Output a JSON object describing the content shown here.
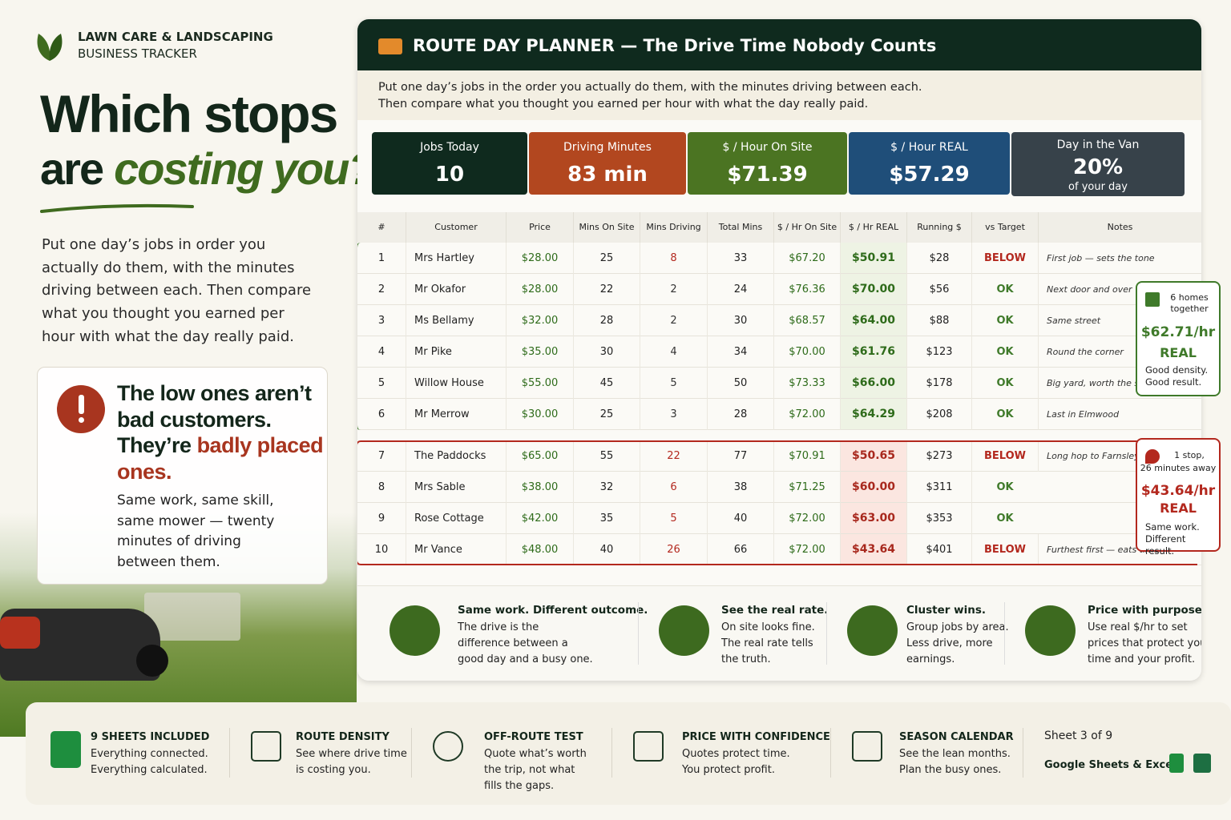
{
  "brand": {
    "line1": "LAWN CARE & LANDSCAPING",
    "line2": "BUSINESS TRACKER"
  },
  "headline": {
    "line1": "Which stops",
    "line2_plain": "are",
    "line2_accent": "costing you?"
  },
  "intro": "Put one day’s jobs in order you actually do them, with the minutes driving between each. Then compare what you thought you earned per hour with what the day really paid.",
  "callout": {
    "title_plain": "The low ones aren’t bad customers. They’re",
    "title_accent": "badly placed ones.",
    "body": "Same work, same skill, same mower — twenty minutes of driving between them."
  },
  "planner": {
    "title": "ROUTE DAY PLANNER — The Drive Time Nobody Counts",
    "lines": [
      "Put one day’s jobs in the order you actually do them, with the minutes driving between each.",
      "Then compare what you thought you earned per hour with what the day really paid."
    ],
    "kpis": [
      {
        "label": "Jobs Today",
        "value": "10",
        "color": "#0f2a1e"
      },
      {
        "label": "Driving Minutes",
        "value": "83 min",
        "color": "#b2471f"
      },
      {
        "label": "$ / Hour On Site",
        "value": "$71.39",
        "color": "#4b7422"
      },
      {
        "label": "$ / Hour REAL",
        "value": "$57.29",
        "color": "#1f4e79"
      },
      {
        "label": "Day in the Van",
        "value": "20%",
        "sub": "of your day",
        "color": "#37424a"
      }
    ],
    "table": {
      "headers": [
        "#",
        "Customer",
        "Price",
        "Mins On Site",
        "Mins Driving",
        "Total Mins",
        "$ / Hr On Site",
        "$ / Hr REAL",
        "Running $",
        "vs Target",
        "Notes"
      ],
      "groups": [
        {
          "color": "#3f7a2a",
          "rows": [
            {
              "cells": [
                "1",
                "Mrs Hartley",
                "$28.00",
                "25",
                "8",
                "33",
                "$67.20",
                "$50.91",
                "$28",
                "BELOW",
                "First job — sets the tone"
              ],
              "status_color": "#b3281e",
              "drive_color": "#b3281e"
            },
            {
              "cells": [
                "2",
                "Mr Okafor",
                "$28.00",
                "22",
                "2",
                "24",
                "$76.36",
                "$70.00",
                "$56",
                "OK",
                "Next door and over"
              ],
              "status_color": "#3f7a2a",
              "drive_color": "#333333"
            },
            {
              "cells": [
                "3",
                "Ms Bellamy",
                "$32.00",
                "28",
                "2",
                "30",
                "$68.57",
                "$64.00",
                "$88",
                "OK",
                "Same street"
              ],
              "status_color": "#3f7a2a",
              "drive_color": "#333333"
            },
            {
              "cells": [
                "4",
                "Mr Pike",
                "$35.00",
                "30",
                "4",
                "34",
                "$70.00",
                "$61.76",
                "$123",
                "OK",
                "Round the corner"
              ],
              "status_color": "#3f7a2a",
              "drive_color": "#333333"
            },
            {
              "cells": [
                "5",
                "Willow House",
                "$55.00",
                "45",
                "5",
                "50",
                "$73.33",
                "$66.00",
                "$178",
                "OK",
                "Big yard, worth the stop"
              ],
              "status_color": "#3f7a2a",
              "drive_color": "#333333"
            },
            {
              "cells": [
                "6",
                "Mr Merrow",
                "$30.00",
                "25",
                "3",
                "28",
                "$72.00",
                "$64.29",
                "$208",
                "OK",
                "Last in Elmwood"
              ],
              "status_color": "#3f7a2a",
              "drive_color": "#333333"
            }
          ],
          "callout": {
            "line1": "6 homes together",
            "value": "$62.71/hr",
            "label": "REAL",
            "note": "Good density. Good result."
          }
        },
        {
          "color": "#b3281e",
          "rows": [
            {
              "cells": [
                "7",
                "The Paddocks",
                "$65.00",
                "55",
                "22",
                "77",
                "$70.91",
                "$50.65",
                "$273",
                "BELOW",
                "Long hop to Farnsley"
              ],
              "status_color": "#b3281e",
              "drive_color": "#b3281e"
            },
            {
              "cells": [
                "8",
                "Mrs Sable",
                "$38.00",
                "32",
                "6",
                "38",
                "$71.25",
                "$60.00",
                "$311",
                "OK",
                null
              ],
              "status_color": "#3f7a2a",
              "drive_color": "#b3281e"
            },
            {
              "cells": [
                "9",
                "Rose Cottage",
                "$42.00",
                "35",
                "5",
                "40",
                "$72.00",
                "$63.00",
                "$353",
                "OK",
                null
              ],
              "status_color": "#3f7a2a",
              "drive_color": "#b3281e"
            },
            {
              "cells": [
                "10",
                "Mr Vance",
                "$48.00",
                "40",
                "26",
                "66",
                "$72.00",
                "$43.64",
                "$401",
                "BELOW",
                "Furthest first — eats time"
              ],
              "status_color": "#b3281e",
              "drive_color": "#b3281e"
            }
          ],
          "callout": {
            "line1": "1 stop,",
            "line2": "26 minutes away",
            "value": "$43.64/hr",
            "label": "REAL",
            "note": "Same work. Different result."
          }
        }
      ]
    }
  },
  "features": [
    {
      "title": "Same work. Different outcome.",
      "body": "The drive is the difference between a good day and a busy one."
    },
    {
      "title": "See the real rate.",
      "body": "On site looks fine. The real rate tells the truth."
    },
    {
      "title": "Cluster wins.",
      "body": "Group jobs by area. Less drive, more earnings."
    },
    {
      "title": "Price with purpose.",
      "body": "Use real $/hr to set prices that protect your time and your profit."
    }
  ],
  "footer": {
    "items": [
      {
        "title": "9 SHEETS INCLUDED",
        "body": "Everything connected. Everything calculated."
      },
      {
        "title": "ROUTE DENSITY",
        "body": "See where drive time is costing you."
      },
      {
        "title": "OFF-ROUTE TEST",
        "body": "Quote what’s worth the trip, not what fills the gaps."
      },
      {
        "title": "PRICE WITH CONFIDENCE",
        "body": "Quotes protect time. You protect profit."
      },
      {
        "title": "SEASON CALENDAR",
        "body": "See the lean months. Plan the busy ones."
      }
    ],
    "sheet": "Sheet 3 of 9",
    "apps": "Google Sheets & Excel"
  }
}
